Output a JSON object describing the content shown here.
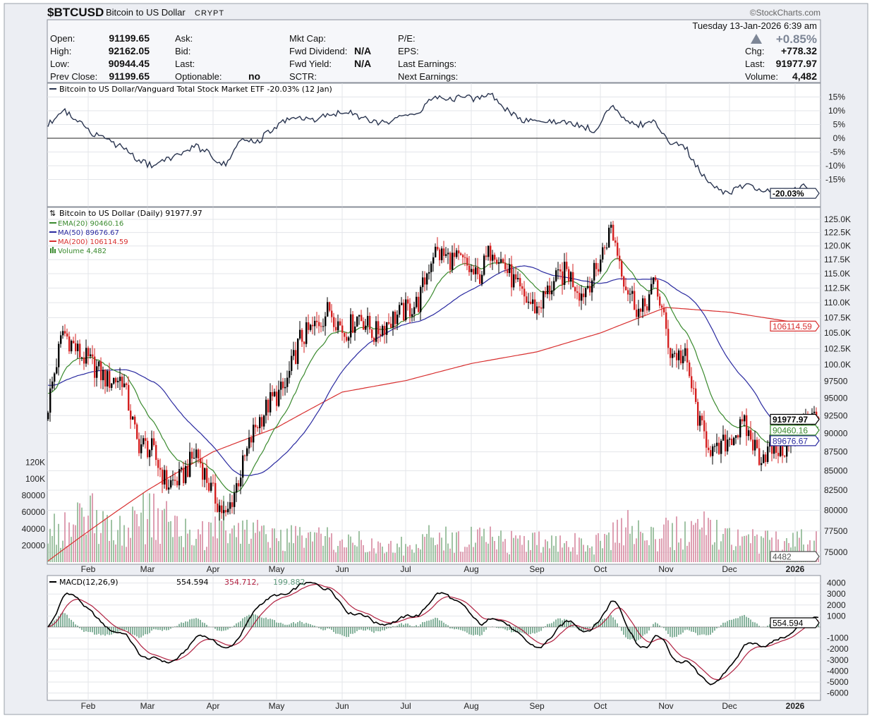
{
  "header": {
    "symbol": "$BTCUSD",
    "name": "Bitcoin to US Dollar",
    "exchange": "CRYPT",
    "copyright": "©StockCharts.com",
    "datetime": "Tuesday  13-Jan-2026  6:39 am",
    "pct_change": "+0.85%",
    "direction_icon": "triangle-up"
  },
  "quote": {
    "open_label": "Open:",
    "open": "91199.65",
    "high_label": "High:",
    "high": "92162.05",
    "low_label": "Low:",
    "low": "90944.45",
    "prev_close_label": "Prev Close:",
    "prev_close": "91199.65",
    "ask_label": "Ask:",
    "bid_label": "Bid:",
    "last_label_left": "Last:",
    "optionable_label": "Optionable:",
    "optionable": "no",
    "mkt_cap_label": "Mkt Cap:",
    "fwd_dividend_label": "Fwd Dividend:",
    "fwd_dividend": "N/A",
    "fwd_yield_label": "Fwd Yield:",
    "fwd_yield": "N/A",
    "sctr_label": "SCTR:",
    "pe_label": "P/E:",
    "eps_label": "EPS:",
    "last_earnings_label": "Last Earnings:",
    "next_earnings_label": "Next Earnings:",
    "chg_label": "Chg:",
    "chg": "+778.32",
    "last_label": "Last:",
    "last": "91977.97",
    "volume_label": "Volume:",
    "volume": "4,482"
  },
  "colors": {
    "price_up": "#000000",
    "price_down": "#d42020",
    "ema20": "#3a8a2e",
    "ma50": "#2a2aa0",
    "ma200": "#d83030",
    "macd": "#000000",
    "signal": "#b02040",
    "histogram": "#5f9a7c",
    "vol_up": "#8fb894",
    "vol_down": "#d88ea4"
  },
  "chart_data": [
    {
      "type": "line",
      "title": "Bitcoin to US Dollar/Vanguard Total Stock Market ETF -20.03% (12 Jan)",
      "start_date": "2025-01-13",
      "frequency": "weekly",
      "values_pct": [
        5,
        10,
        7,
        2,
        -1,
        -3,
        -8,
        -10,
        -8,
        -5,
        -3,
        -6,
        -10,
        0,
        -2,
        3,
        6,
        8,
        7,
        8,
        10,
        8,
        6,
        6,
        8,
        9,
        15,
        14,
        15,
        14,
        16,
        10,
        7,
        6,
        6,
        6,
        4,
        3,
        12,
        6,
        5,
        6,
        -2,
        -3,
        -12,
        -18,
        -20,
        -17,
        -19,
        -20,
        -20,
        -17,
        -20.03
      ],
      "y_ticks": [
        {
          "v": 15,
          "label": "15%"
        },
        {
          "v": 10,
          "label": "10%"
        },
        {
          "v": 5,
          "label": "5%"
        },
        {
          "v": 0,
          "label": "0%"
        },
        {
          "v": -5,
          "label": "-5%"
        },
        {
          "v": -10,
          "label": "-10%"
        },
        {
          "v": -15,
          "label": "-15%"
        }
      ],
      "last_tag": "-20.03%"
    },
    {
      "type": "candlestick",
      "title": "Bitcoin to US Dollar (Daily) 91977.97",
      "legend": [
        "EMA(20) 90460.16",
        "MA(50) 89676.67",
        "MA(200) 106114.59",
        "Volume 4,482"
      ],
      "start_date": "2025-01-13",
      "frequency": "weekly",
      "weekly_close": [
        94000,
        105300,
        102000,
        100000,
        97600,
        98000,
        88800,
        87800,
        83200,
        84000,
        87500,
        82500,
        79000,
        84800,
        91000,
        94500,
        96500,
        104000,
        106000,
        109000,
        105000,
        108000,
        104800,
        107000,
        108500,
        110000,
        119000,
        117800,
        117000,
        114000,
        120000,
        115500,
        111000,
        109000,
        113000,
        115500,
        111500,
        115500,
        123500,
        113000,
        108000,
        113500,
        102000,
        101000,
        91000,
        87000,
        89500,
        91000,
        87000,
        88000,
        88000,
        92500,
        91977.97
      ],
      "weekly_volume": [
        35000,
        40000,
        45000,
        50000,
        45000,
        35000,
        55000,
        50000,
        45000,
        35000,
        30000,
        35000,
        50000,
        40000,
        30000,
        30000,
        25000,
        30000,
        25000,
        25000,
        20000,
        22000,
        20000,
        20000,
        18000,
        18000,
        30000,
        28000,
        25000,
        25000,
        30000,
        22000,
        25000,
        22000,
        20000,
        20000,
        22000,
        22000,
        35000,
        40000,
        30000,
        28000,
        35000,
        35000,
        45000,
        40000,
        30000,
        28000,
        25000,
        22000,
        20000,
        25000,
        4482
      ],
      "ma200": [
        {
          "date": "2025-01-13",
          "v": 74000
        },
        {
          "date": "2025-03-01",
          "v": 82500
        },
        {
          "date": "2025-04-01",
          "v": 87500
        },
        {
          "date": "2025-05-01",
          "v": 90800
        },
        {
          "date": "2025-06-01",
          "v": 95900
        },
        {
          "date": "2025-07-01",
          "v": 97600
        },
        {
          "date": "2025-08-01",
          "v": 100200
        },
        {
          "date": "2025-09-01",
          "v": 102000
        },
        {
          "date": "2025-10-01",
          "v": 105000
        },
        {
          "date": "2025-11-01",
          "v": 109200
        },
        {
          "date": "2025-12-01",
          "v": 108400
        },
        {
          "date": "2026-01-12",
          "v": 106114.59
        }
      ],
      "last": {
        "close": 91977.97,
        "ema20": 90460.16,
        "ma50": 89676.67,
        "ma200": 106114.59,
        "volume": 4482
      },
      "tags": {
        "close": "91977.97",
        "ema20": "90460.16",
        "ma50": "89676.67",
        "ma200": "106114.59",
        "volume": "4482"
      },
      "y_scale": "log",
      "ylim": [
        74000,
        127000
      ],
      "y_ticks": [
        {
          "v": 125000,
          "label": "125.0K"
        },
        {
          "v": 122500,
          "label": "122.5K"
        },
        {
          "v": 120000,
          "label": "120.0K"
        },
        {
          "v": 117500,
          "label": "117.5K"
        },
        {
          "v": 115000,
          "label": "115.0K"
        },
        {
          "v": 112500,
          "label": "112.5K"
        },
        {
          "v": 110000,
          "label": "110.0K"
        },
        {
          "v": 107500,
          "label": "107.5K"
        },
        {
          "v": 105000,
          "label": "105.0K"
        },
        {
          "v": 102500,
          "label": "102.5K"
        },
        {
          "v": 100000,
          "label": "100.0K"
        },
        {
          "v": 97500,
          "label": "97500"
        },
        {
          "v": 95000,
          "label": "95000"
        },
        {
          "v": 92500,
          "label": "92500"
        },
        {
          "v": 90000,
          "label": "90000"
        },
        {
          "v": 87500,
          "label": "87500"
        },
        {
          "v": 85000,
          "label": "85000"
        },
        {
          "v": 82500,
          "label": "82500"
        },
        {
          "v": 80000,
          "label": "80000"
        },
        {
          "v": 77500,
          "label": "77500"
        },
        {
          "v": 75000,
          "label": "75000"
        }
      ],
      "volume_ticks": [
        {
          "v": 120000,
          "label": "120K"
        },
        {
          "v": 100000,
          "label": "100K"
        },
        {
          "v": 80000,
          "label": "80000"
        },
        {
          "v": 60000,
          "label": "60000"
        },
        {
          "v": 40000,
          "label": "40000"
        },
        {
          "v": 20000,
          "label": "20000"
        }
      ]
    },
    {
      "type": "line",
      "title": "MACD(12,26,9)",
      "legend_macd": "554.594,",
      "legend_signal": "354.712,",
      "legend_hist": "199.882",
      "last": {
        "macd": 554.594,
        "signal": 354.712,
        "histogram": 199.882
      },
      "last_tag": "554.594",
      "y_ticks": [
        {
          "v": 4000,
          "label": "4000"
        },
        {
          "v": 3000,
          "label": "3000"
        },
        {
          "v": 2000,
          "label": "2000"
        },
        {
          "v": 1000,
          "label": "1000"
        },
        {
          "v": -1000,
          "label": "-1000"
        },
        {
          "v": -2000,
          "label": "-2000"
        },
        {
          "v": -3000,
          "label": "-3000"
        },
        {
          "v": -4000,
          "label": "-4000"
        },
        {
          "v": -5000,
          "label": "-5000"
        },
        {
          "v": -6000,
          "label": "-6000"
        }
      ]
    }
  ],
  "x_axis": [
    {
      "label": "Feb",
      "date": "2025-02-01"
    },
    {
      "label": "Mar",
      "date": "2025-03-01"
    },
    {
      "label": "Apr",
      "date": "2025-04-01"
    },
    {
      "label": "May",
      "date": "2025-05-01"
    },
    {
      "label": "Jun",
      "date": "2025-06-01"
    },
    {
      "label": "Jul",
      "date": "2025-07-01"
    },
    {
      "label": "Aug",
      "date": "2025-08-01"
    },
    {
      "label": "Sep",
      "date": "2025-09-01"
    },
    {
      "label": "Oct",
      "date": "2025-10-01"
    },
    {
      "label": "Nov",
      "date": "2025-11-01"
    },
    {
      "label": "Dec",
      "date": "2025-12-01"
    },
    {
      "label": "2026",
      "date": "2026-01-01"
    }
  ]
}
